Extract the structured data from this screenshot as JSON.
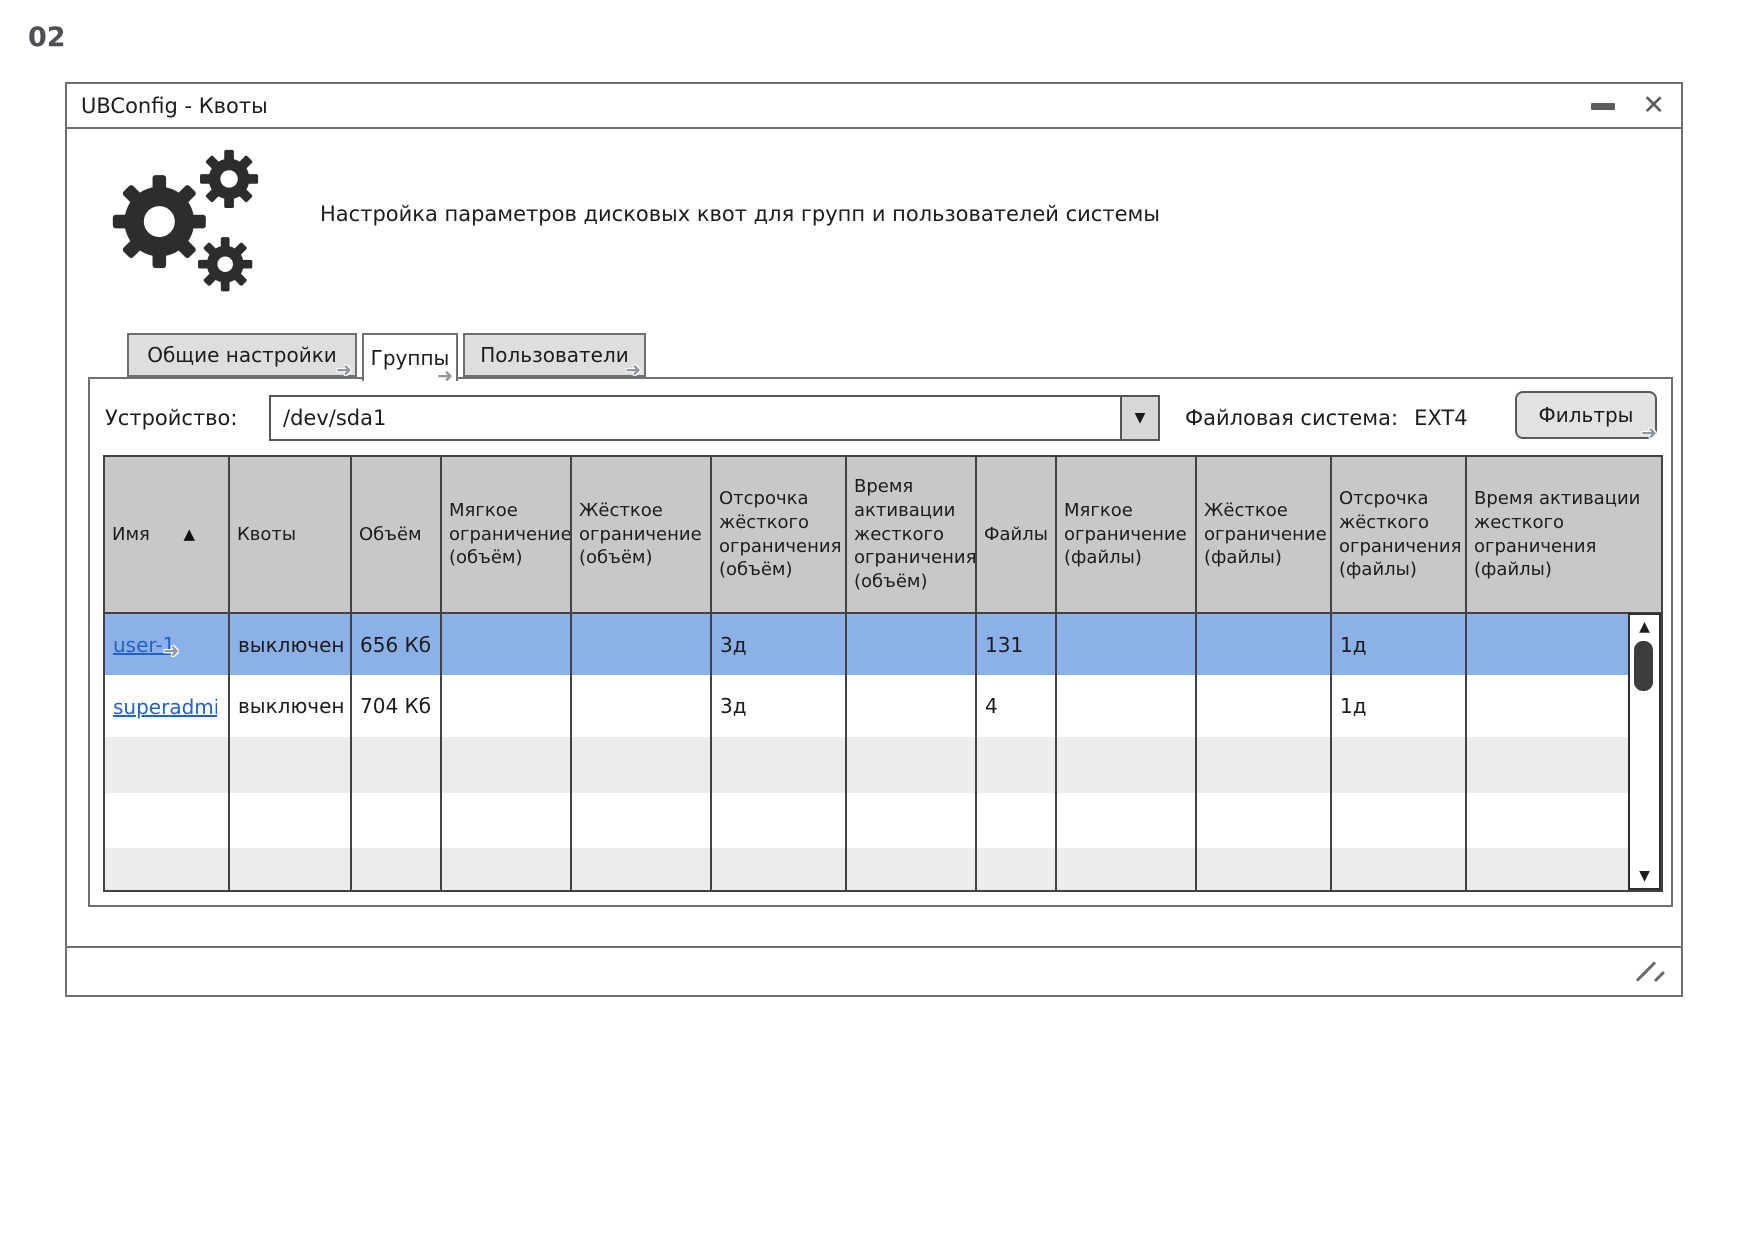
{
  "page_label": "02",
  "window": {
    "title": "UBConfig - Квоты"
  },
  "header": {
    "description": "Настройка параметров дисковых квот для групп и пользователей системы"
  },
  "tabs": [
    {
      "label": "Общие настройки",
      "active": false
    },
    {
      "label": "Группы",
      "active": true
    },
    {
      "label": "Пользователи",
      "active": false
    }
  ],
  "device_bar": {
    "label": "Устройство:",
    "device_value": "/dev/sda1",
    "filesystem_label": "Файловая система:",
    "filesystem_value": "EXT4",
    "filters_button": "Фильтры"
  },
  "table": {
    "columns": [
      {
        "label": "Имя",
        "sorted": "asc"
      },
      {
        "label": "Квоты"
      },
      {
        "label": "Объём"
      },
      {
        "label": "Мягкое ограничение (объём)"
      },
      {
        "label": "Жёсткое ограничение (объём)"
      },
      {
        "label": "Отсрочка жёсткого ограничения (объём)"
      },
      {
        "label": "Время активации жесткого ограничения (объём)"
      },
      {
        "label": "Файлы"
      },
      {
        "label": "Мягкое ограничение (файлы)"
      },
      {
        "label": "Жёсткое ограничение (файлы)"
      },
      {
        "label": "Отсрочка жёсткого ограничения (файлы)"
      },
      {
        "label": "Время активации жесткого ограничения (файлы)"
      }
    ],
    "cell_keys": [
      "name",
      "quotas",
      "volume",
      "soft_volume",
      "hard_volume",
      "grace_volume",
      "activation_volume",
      "files",
      "soft_files",
      "hard_files",
      "grace_files",
      "activation_files"
    ],
    "rows": [
      {
        "name": "user-1",
        "quotas": "выключен",
        "volume": "656 Кб",
        "soft_volume": "",
        "hard_volume": "",
        "grace_volume": "3д",
        "activation_volume": "",
        "files": "131",
        "soft_files": "",
        "hard_files": "",
        "grace_files": "1д",
        "activation_files": "",
        "selected": true,
        "link_arrow": true
      },
      {
        "name": "superadmin",
        "quotas": "выключен",
        "volume": "704 Кб",
        "soft_volume": "",
        "hard_volume": "",
        "grace_volume": "3д",
        "activation_volume": "",
        "files": "4",
        "soft_files": "",
        "hard_files": "",
        "grace_files": "1д",
        "activation_files": "",
        "selected": false,
        "link_arrow": false
      }
    ]
  },
  "icons": {
    "close": "✕",
    "dropdown_arrow": "▼",
    "sort_asc": "▲",
    "scroll_up": "▲",
    "scroll_down": "▼",
    "link_arrow": "➜"
  },
  "colors": {
    "selection": "#8cb0e8",
    "link": "#2262c8",
    "header_fill": "#c8c8c8",
    "stripe": "#ececec"
  }
}
